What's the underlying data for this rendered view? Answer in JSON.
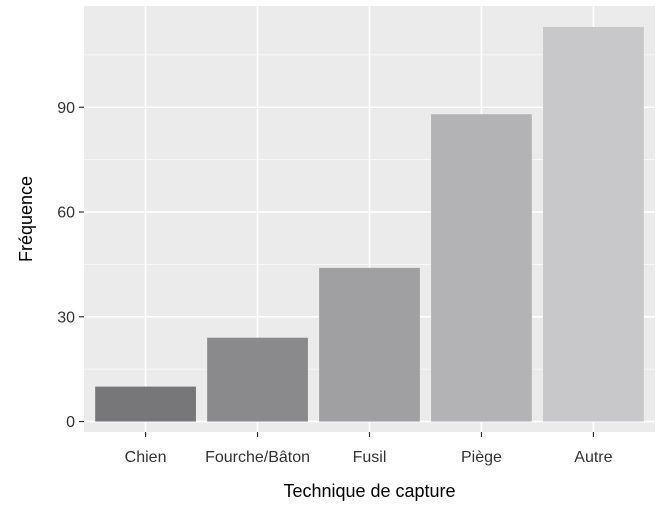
{
  "chart_data": {
    "type": "bar",
    "categories": [
      "Chien",
      "Fourche/Bâton",
      "Fusil",
      "Piège",
      "Autre"
    ],
    "values": [
      10,
      24,
      44,
      88,
      113
    ],
    "title": "",
    "xlabel": "Technique de capture",
    "ylabel": "Fréquence",
    "ylim": [
      -3,
      119
    ],
    "yticks": [
      0,
      30,
      60,
      90
    ],
    "ytick_labels": [
      "0",
      "30",
      "60",
      "90"
    ],
    "grid": true,
    "legend": "none",
    "colors": {
      "panel_background": "#ebebeb",
      "grid_major": "#ffffff",
      "bars": [
        "#77777a",
        "#8a8a8d",
        "#a0a0a3",
        "#b3b3b6",
        "#c8c8ca"
      ],
      "text": "#333333"
    }
  }
}
